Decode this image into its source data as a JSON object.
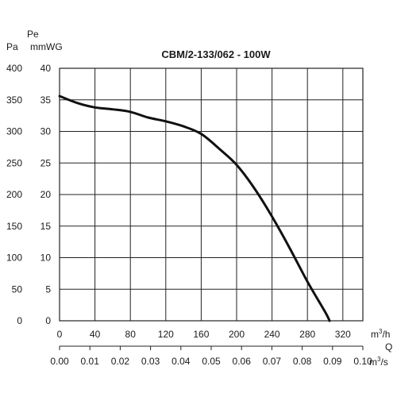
{
  "chart_data": {
    "type": "line",
    "title": "CBM/2-133/062 - 100W",
    "y_axis_left": {
      "label": "Pa",
      "ticks": [
        "400",
        "350",
        "300",
        "250",
        "200",
        "150",
        "100",
        "50",
        "0"
      ],
      "range": [
        0,
        400
      ]
    },
    "y_axis_right": {
      "label_top": "Pe",
      "label": "mmWG",
      "ticks": [
        "40",
        "35",
        "30",
        "25",
        "20",
        "15",
        "10",
        "5",
        "0"
      ],
      "range": [
        0,
        40
      ]
    },
    "x_axis_primary": {
      "unit": "m3/h",
      "unit_base": "m",
      "unit_exp": "3",
      "unit_tail": "/h",
      "ticks": [
        "0",
        "40",
        "80",
        "120",
        "160",
        "200",
        "240",
        "280",
        "320"
      ],
      "range": [
        0,
        340
      ]
    },
    "x_axis_secondary": {
      "label": "Q",
      "unit": "m3/s",
      "unit_base": "m",
      "unit_exp": "3",
      "unit_tail": "/s",
      "ticks": [
        "0.00",
        "0.01",
        "0.02",
        "0.03",
        "0.04",
        "0.05",
        "0.06",
        "0.07",
        "0.08",
        "0.09",
        "0.10"
      ],
      "range": [
        0,
        0.1
      ]
    },
    "grid": true,
    "series": [
      {
        "x": [
          0,
          20,
          40,
          60,
          80,
          100,
          120,
          140,
          160,
          180,
          200,
          220,
          240,
          260,
          280,
          300,
          305
        ],
        "y": [
          356,
          345,
          338,
          335,
          331,
          322,
          316,
          308,
          296,
          273,
          247,
          210,
          165,
          115,
          62,
          14,
          0
        ]
      }
    ]
  }
}
